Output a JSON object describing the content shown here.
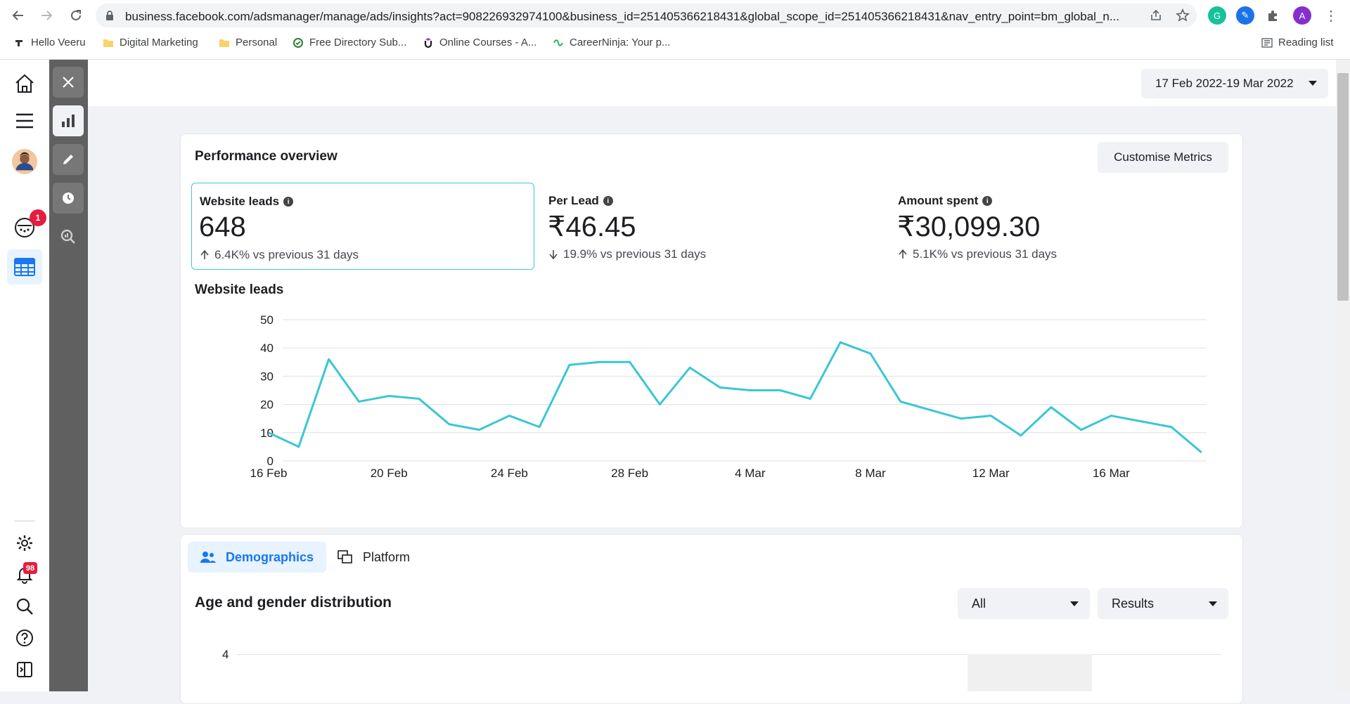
{
  "browser": {
    "url": "business.facebook.com/adsmanager/manage/ads/insights?act=908226932974100&business_id=251405366218431&global_scope_id=251405366218431&nav_entry_point=bm_global_n...",
    "profile_initial": "A",
    "reading_list": "Reading list",
    "bookmarks": [
      "Hello Veeru",
      "Digital Marketing",
      "Personal",
      "Free Directory Sub...",
      "Online Courses - A...",
      "CareerNinja: Your p..."
    ]
  },
  "rail": {
    "notification_badge": "1",
    "alerts_badge": "98"
  },
  "header": {
    "date_range": "17 Feb 2022-19 Mar 2022"
  },
  "performance": {
    "title": "Performance overview",
    "customise_label": "Customise Metrics",
    "metrics": [
      {
        "label": "Website leads",
        "value": "648",
        "comparison": "6.4K% vs previous 31 days",
        "trend": "up"
      },
      {
        "label": "Per Lead",
        "value": "₹46.45",
        "comparison": "19.9% vs previous 31 days",
        "trend": "down"
      },
      {
        "label": "Amount spent",
        "value": "₹30,099.30",
        "comparison": "5.1K% vs previous 31 days",
        "trend": "up"
      }
    ],
    "chart_title": "Website leads"
  },
  "chart_data": {
    "type": "line",
    "title": "Website leads",
    "ylim": [
      0,
      50
    ],
    "y_ticks": [
      0,
      10,
      20,
      30,
      40,
      50
    ],
    "x_tick_labels": [
      "16 Feb",
      "20 Feb",
      "24 Feb",
      "28 Feb",
      "4 Mar",
      "8 Mar",
      "12 Mar",
      "16 Mar"
    ],
    "x": [
      "16 Feb",
      "17 Feb",
      "18 Feb",
      "19 Feb",
      "20 Feb",
      "21 Feb",
      "22 Feb",
      "23 Feb",
      "24 Feb",
      "25 Feb",
      "26 Feb",
      "27 Feb",
      "28 Feb",
      "1 Mar",
      "2 Mar",
      "3 Mar",
      "4 Mar",
      "5 Mar",
      "6 Mar",
      "7 Mar",
      "8 Mar",
      "9 Mar",
      "10 Mar",
      "11 Mar",
      "12 Mar",
      "13 Mar",
      "14 Mar",
      "15 Mar",
      "16 Mar",
      "17 Mar",
      "18 Mar",
      "19 Mar"
    ],
    "series": [
      {
        "values": [
          10,
          5,
          36,
          21,
          23,
          22,
          13,
          11,
          16,
          12,
          34,
          35,
          35,
          20,
          33,
          26,
          25,
          25,
          22,
          42,
          38,
          21,
          18,
          15,
          16,
          9,
          19,
          11,
          16,
          14,
          12,
          3
        ],
        "color": "#3ac7d3"
      }
    ],
    "grid": true
  },
  "breakdown": {
    "tabs": [
      {
        "label": "Demographics",
        "active": true
      },
      {
        "label": "Platform",
        "active": false
      }
    ],
    "title": "Age and gender distribution",
    "filter_value": "All",
    "metric_value": "Results",
    "first_tick": "4"
  },
  "colors": {
    "accent": "#1877f2",
    "line": "#3ac7d3",
    "badge": "#e41e3f"
  }
}
